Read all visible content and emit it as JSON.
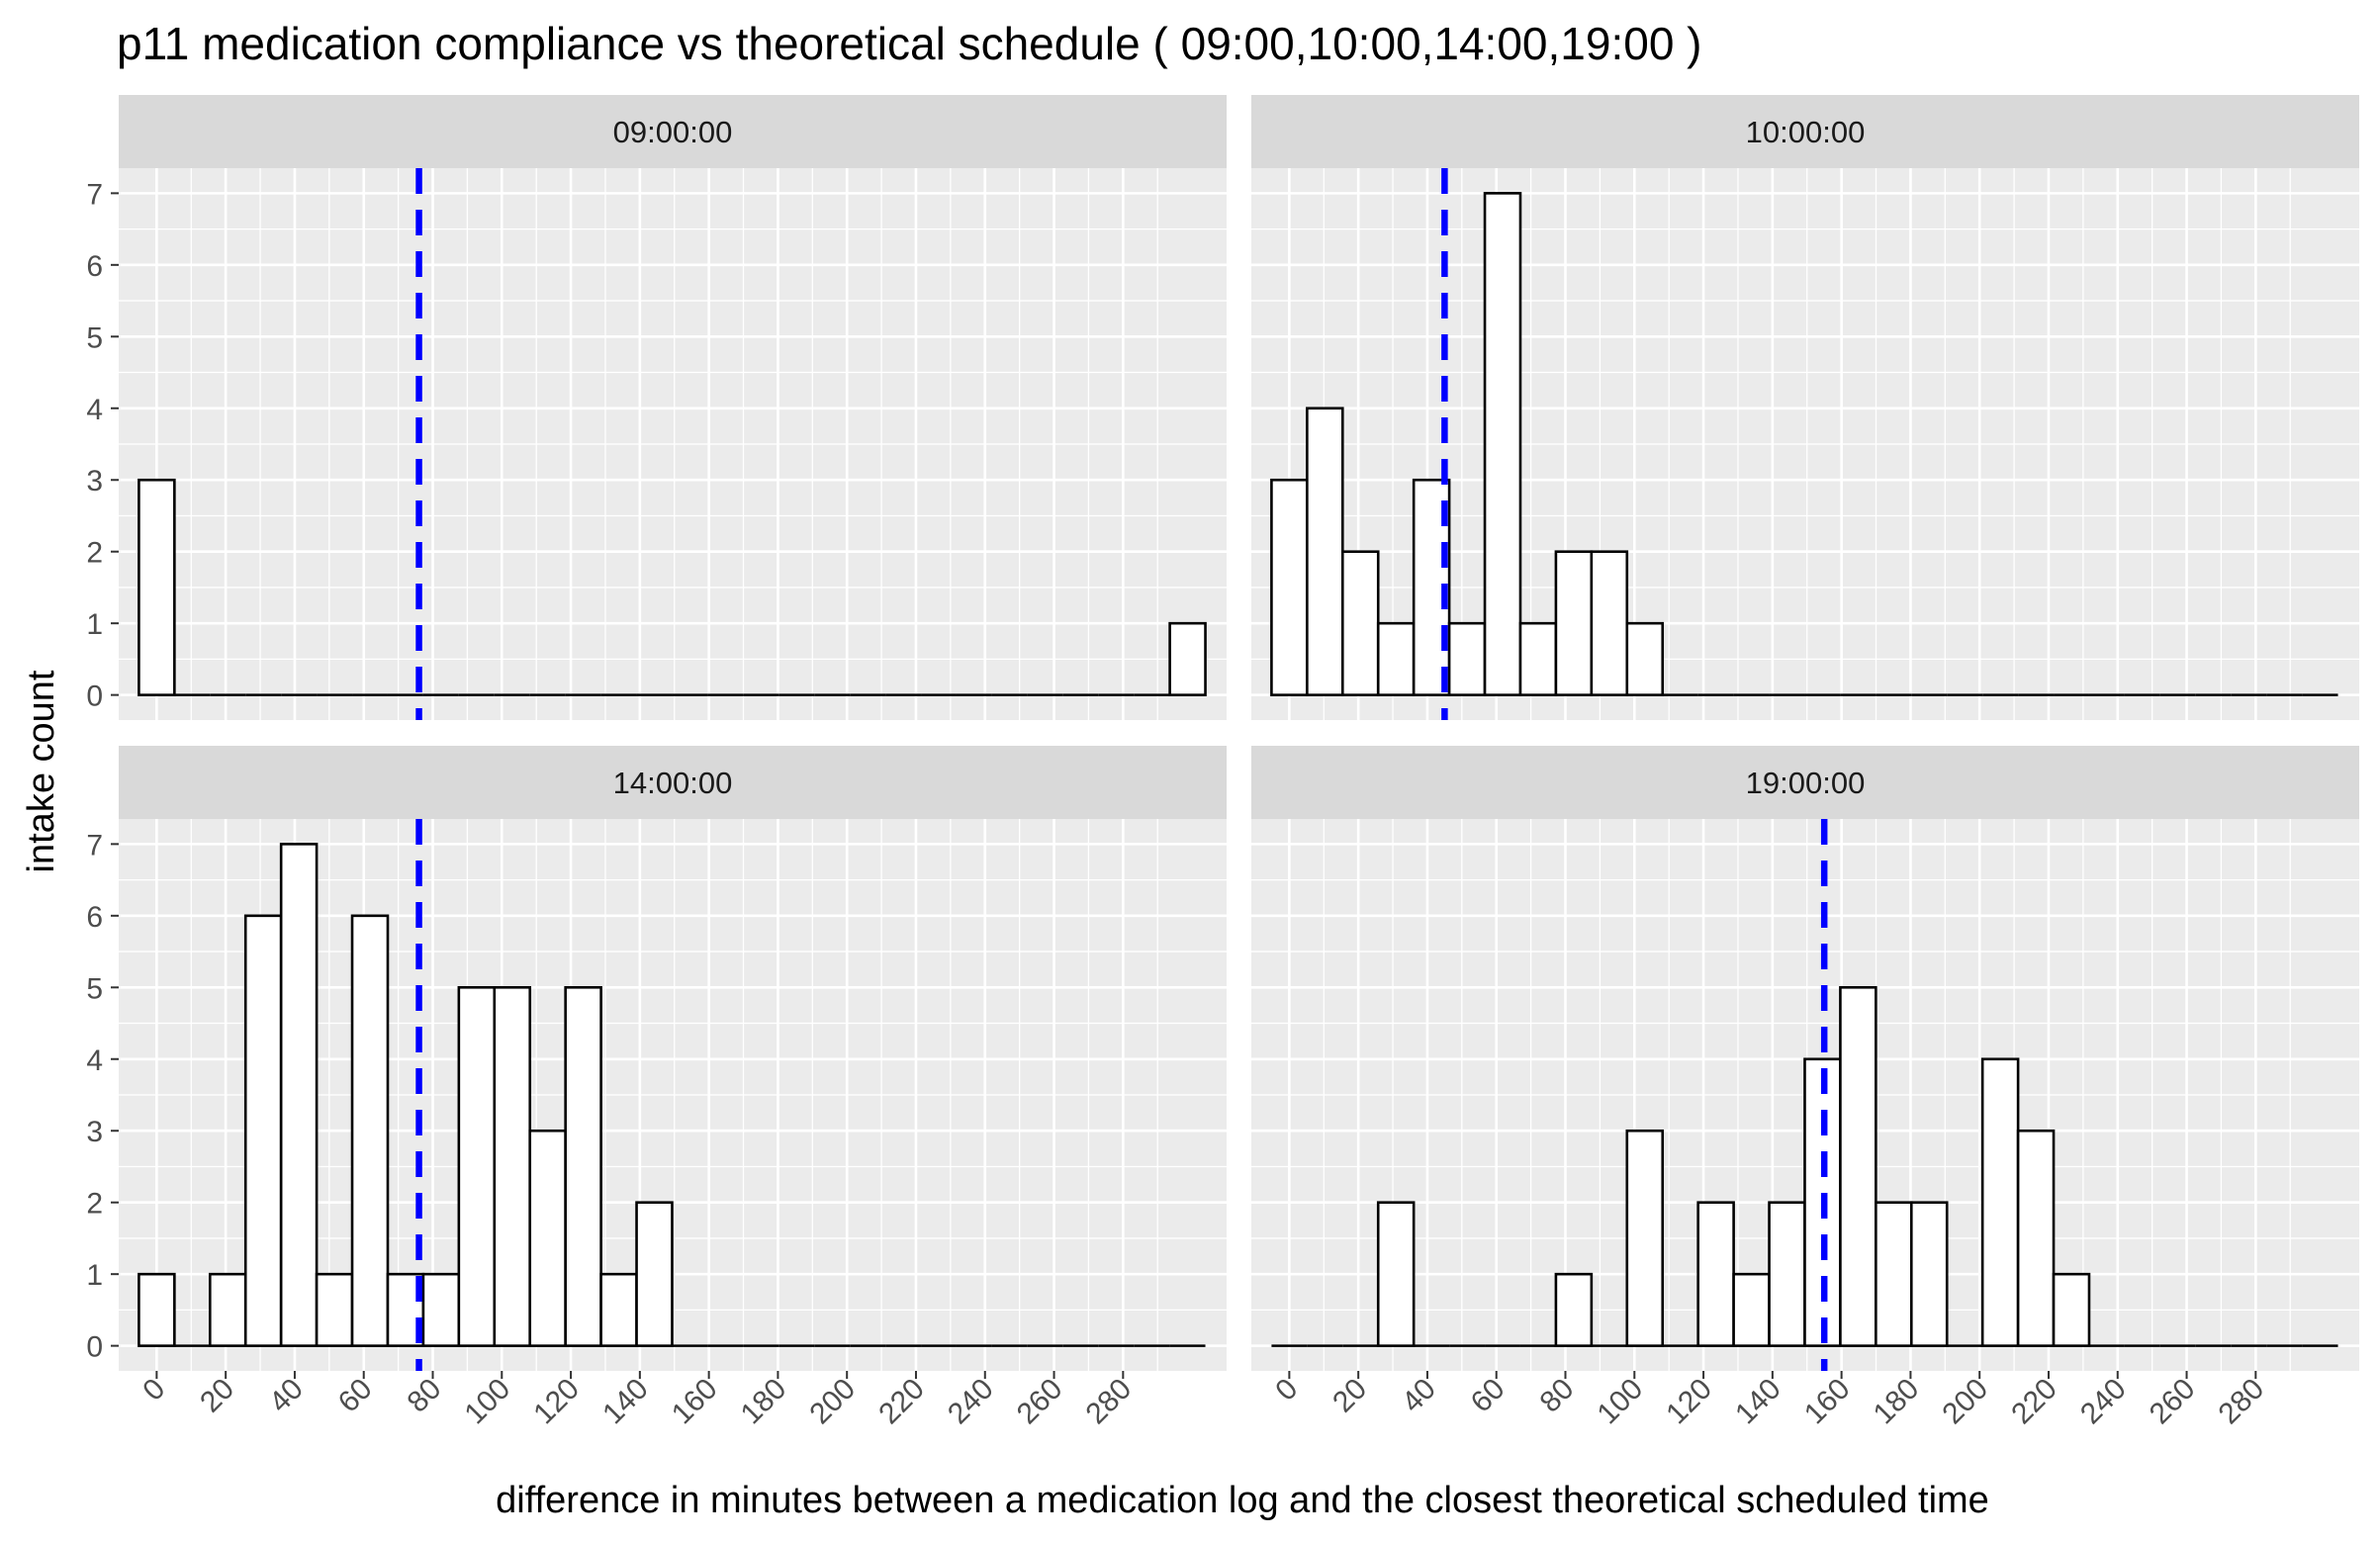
{
  "chart_data": {
    "type": "bar",
    "title": "p11  medication compliance vs theoretical schedule ( 09:00,10:00,14:00,19:00 )",
    "xlabel": "difference in minutes between a medication log and the closest theoretical scheduled time",
    "ylabel": "intake count",
    "bin_width": 10.3,
    "bin_start": -5.15,
    "xlim": [
      -11,
      310
    ],
    "ylim": [
      -0.35,
      7.35
    ],
    "x_ticks": [
      0,
      20,
      40,
      60,
      80,
      100,
      120,
      140,
      160,
      180,
      200,
      220,
      240,
      260,
      280
    ],
    "y_ticks": [
      0,
      1,
      2,
      3,
      4,
      5,
      6,
      7
    ],
    "grid": true,
    "legend": "none",
    "colors": {
      "panel_bg": "#ebebeb",
      "strip_bg": "#d9d9d9",
      "grid": "#ffffff",
      "bar_fill": "#ffffff",
      "bar_edge": "#000000",
      "mean_line": "#0000ff",
      "text": "#1a1a1a",
      "tick_label": "#4d4d4d"
    },
    "panels": [
      {
        "strip": "09:00:00",
        "mean_line_x": 76,
        "counts": [
          3,
          0,
          0,
          0,
          0,
          0,
          0,
          0,
          0,
          0,
          0,
          0,
          0,
          0,
          0,
          0,
          0,
          0,
          0,
          0,
          0,
          0,
          0,
          0,
          0,
          0,
          0,
          0,
          0,
          1
        ]
      },
      {
        "strip": "10:00:00",
        "mean_line_x": 45,
        "counts": [
          3,
          4,
          2,
          1,
          3,
          1,
          7,
          1,
          2,
          2,
          1,
          0,
          0,
          0,
          0,
          0,
          0,
          0,
          0,
          0,
          0,
          0,
          0,
          0,
          0,
          0,
          0,
          0,
          0,
          0
        ]
      },
      {
        "strip": "14:00:00",
        "mean_line_x": 76,
        "counts": [
          1,
          0,
          1,
          6,
          7,
          1,
          6,
          1,
          1,
          5,
          5,
          3,
          5,
          1,
          2,
          0,
          0,
          0,
          0,
          0,
          0,
          0,
          0,
          0,
          0,
          0,
          0,
          0,
          0,
          0
        ]
      },
      {
        "strip": "19:00:00",
        "mean_line_x": 155,
        "counts": [
          0,
          0,
          0,
          2,
          0,
          0,
          0,
          0,
          1,
          0,
          3,
          0,
          2,
          1,
          2,
          4,
          5,
          2,
          2,
          0,
          4,
          3,
          1,
          0,
          0,
          0,
          0,
          0,
          0,
          0
        ]
      }
    ]
  }
}
